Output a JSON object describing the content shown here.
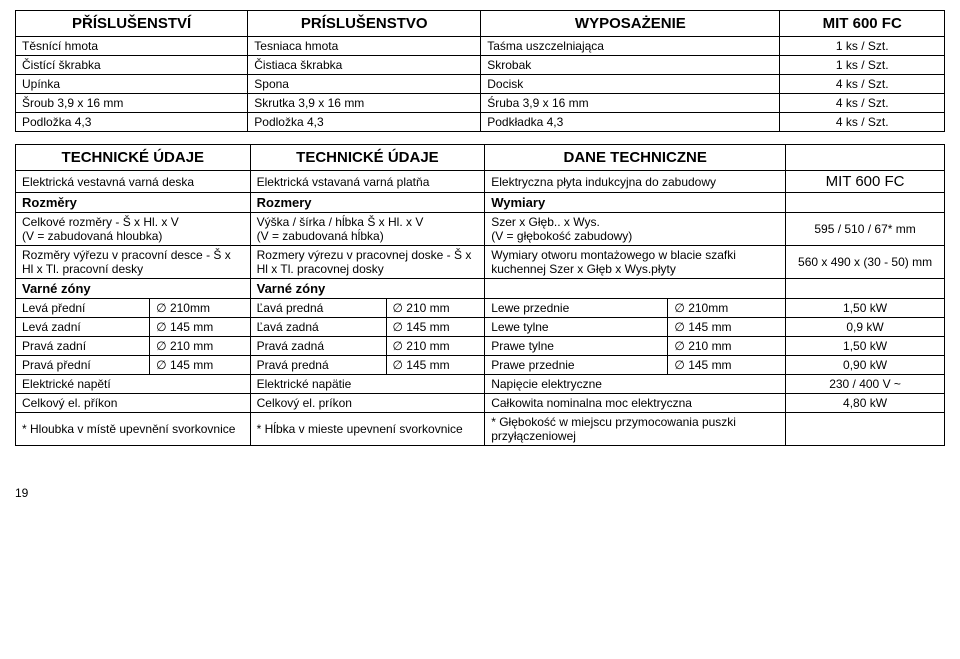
{
  "table1": {
    "headers": [
      "PŘÍSLUŠENSTVÍ",
      "PRÍSLUŠENSTVO",
      "WYPOSAŻENIE",
      "MIT 600 FC"
    ],
    "rows": [
      [
        "Těsnící hmota",
        "Tesniaca hmota",
        "Taśma uszczelniająca",
        "1 ks / Szt."
      ],
      [
        "Čistící škrabka",
        "Čistiaca škrabka",
        "Skrobak",
        "1 ks / Szt."
      ],
      [
        "Upínka",
        "Spona",
        "Docisk",
        "4 ks / Szt."
      ],
      [
        "Šroub 3,9 x 16 mm",
        "Skrutka 3,9 x 16 mm",
        "Śruba 3,9 x 16 mm",
        "4 ks / Szt."
      ],
      [
        "Podložka 4,3",
        "Podložka 4,3",
        "Podkładka 4,3",
        "4 ks / Szt."
      ]
    ]
  },
  "table2": {
    "headers": [
      "TECHNICKÉ ÚDAJE",
      "TECHNICKÉ ÚDAJE",
      "DANE TECHNICZNE",
      ""
    ],
    "desc_row": [
      "Elektrická vestavná varná deska",
      "Elektrická vstavaná varná platňa",
      "Elektryczna płyta indukcyjna do zabudowy",
      "MIT 600 FC"
    ],
    "dims_section": [
      "Rozměry",
      "Rozmery",
      "Wymiary",
      ""
    ],
    "dims_rows": [
      [
        "Celkové rozměry - Š x Hl. x V\n(V = zabudovaná hloubka)",
        "Výška / šírka / hĺbka Š x Hl. x V\n(V = zabudovaná hĺbka)",
        "Szer x Głęb.. x Wys.\n(V = głębokość zabudowy)",
        "595 / 510 / 67* mm"
      ],
      [
        "Rozměry výřezu v pracovní desce - Š x Hl x Tl. pracovní desky",
        "Rozmery výrezu v pracovnej doske - Š x Hl x Tl. pracovnej dosky",
        "Wymiary otworu montażowego w blacie szafki kuchennej Szer x Głęb x Wys.płyty",
        "560 x 490 x (30 - 50) mm"
      ]
    ],
    "zones_section": [
      "Varné zóny",
      "Varné zóny",
      "",
      ""
    ],
    "zone_rows": [
      [
        "Levá přední",
        "∅ 210mm",
        "Ľavá predná",
        "∅ 210 mm",
        "Lewe przednie",
        "∅ 210mm",
        "1,50 kW"
      ],
      [
        "Levá zadní",
        "∅ 145 mm",
        "Ľavá zadná",
        "∅ 145 mm",
        "Lewe tylne",
        "∅ 145 mm",
        "0,9 kW"
      ],
      [
        "Pravá zadní",
        "∅ 210 mm",
        "Pravá zadná",
        "∅ 210 mm",
        "Prawe tylne",
        "∅ 210 mm",
        "1,50 kW"
      ],
      [
        "Pravá přední",
        "∅ 145 mm",
        "Pravá predná",
        "∅ 145 mm",
        "Prawe przednie",
        "∅ 145 mm",
        "0,90 kW"
      ]
    ],
    "elec_rows": [
      [
        "Elektrické napětí",
        "Elektrické napätie",
        "Napięcie elektryczne",
        "230 / 400 V ~"
      ],
      [
        "Celkový el. příkon",
        "Celkový el. príkon",
        "Całkowita nominalna moc elektryczna",
        "4,80 kW"
      ],
      [
        "* Hloubka v místě upevnění svorkovnice",
        "* Hĺbka v mieste upevnení svorkovnice",
        "* Głębokość w miejscu przymocowania puszki przyłączeniowej",
        ""
      ]
    ]
  },
  "page_num": "19"
}
